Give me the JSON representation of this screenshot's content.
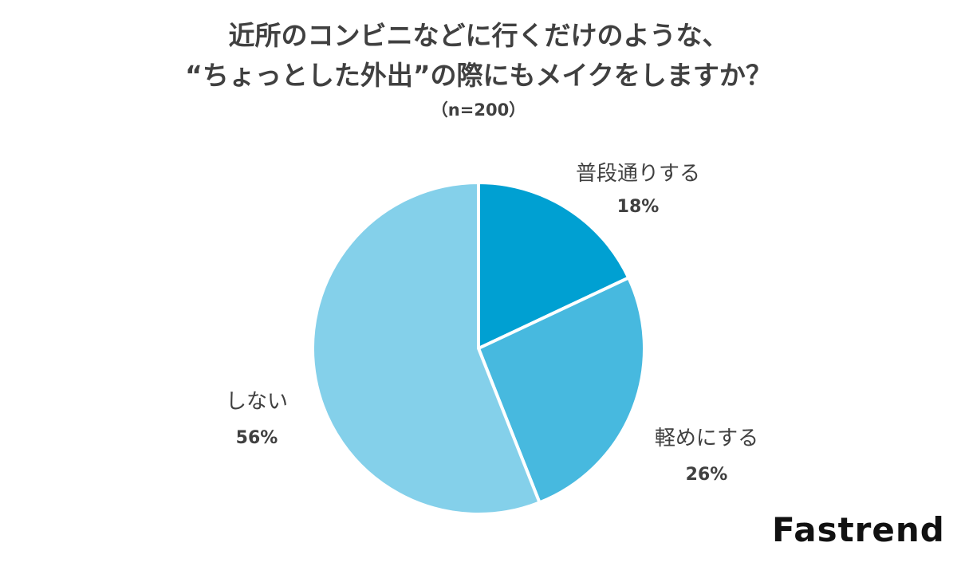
{
  "title_lines": [
    "近所のコンビニなどに行くだけのような、",
    "“ちょっとした外出”の際にもメイクをしますか？"
  ],
  "subtitle": "（n=200）",
  "logo": "Fastrend",
  "chart_data": {
    "type": "pie",
    "title": "近所のコンビニなどに行くだけのような、“ちょっとした外出”の際にもメイクをしますか？",
    "subtitle": "（n=200）",
    "slices": [
      {
        "label": "普段通りする",
        "value": 18,
        "display": "18%",
        "color": "#00a0d2"
      },
      {
        "label": "軽めにする",
        "value": 26,
        "display": "26%",
        "color": "#47b9df"
      },
      {
        "label": "しない",
        "value": 56,
        "display": "56%",
        "color": "#84d0ea"
      }
    ],
    "start": "12 o'clock",
    "direction": "clockwise",
    "legend": "none (labels beside slices)"
  }
}
